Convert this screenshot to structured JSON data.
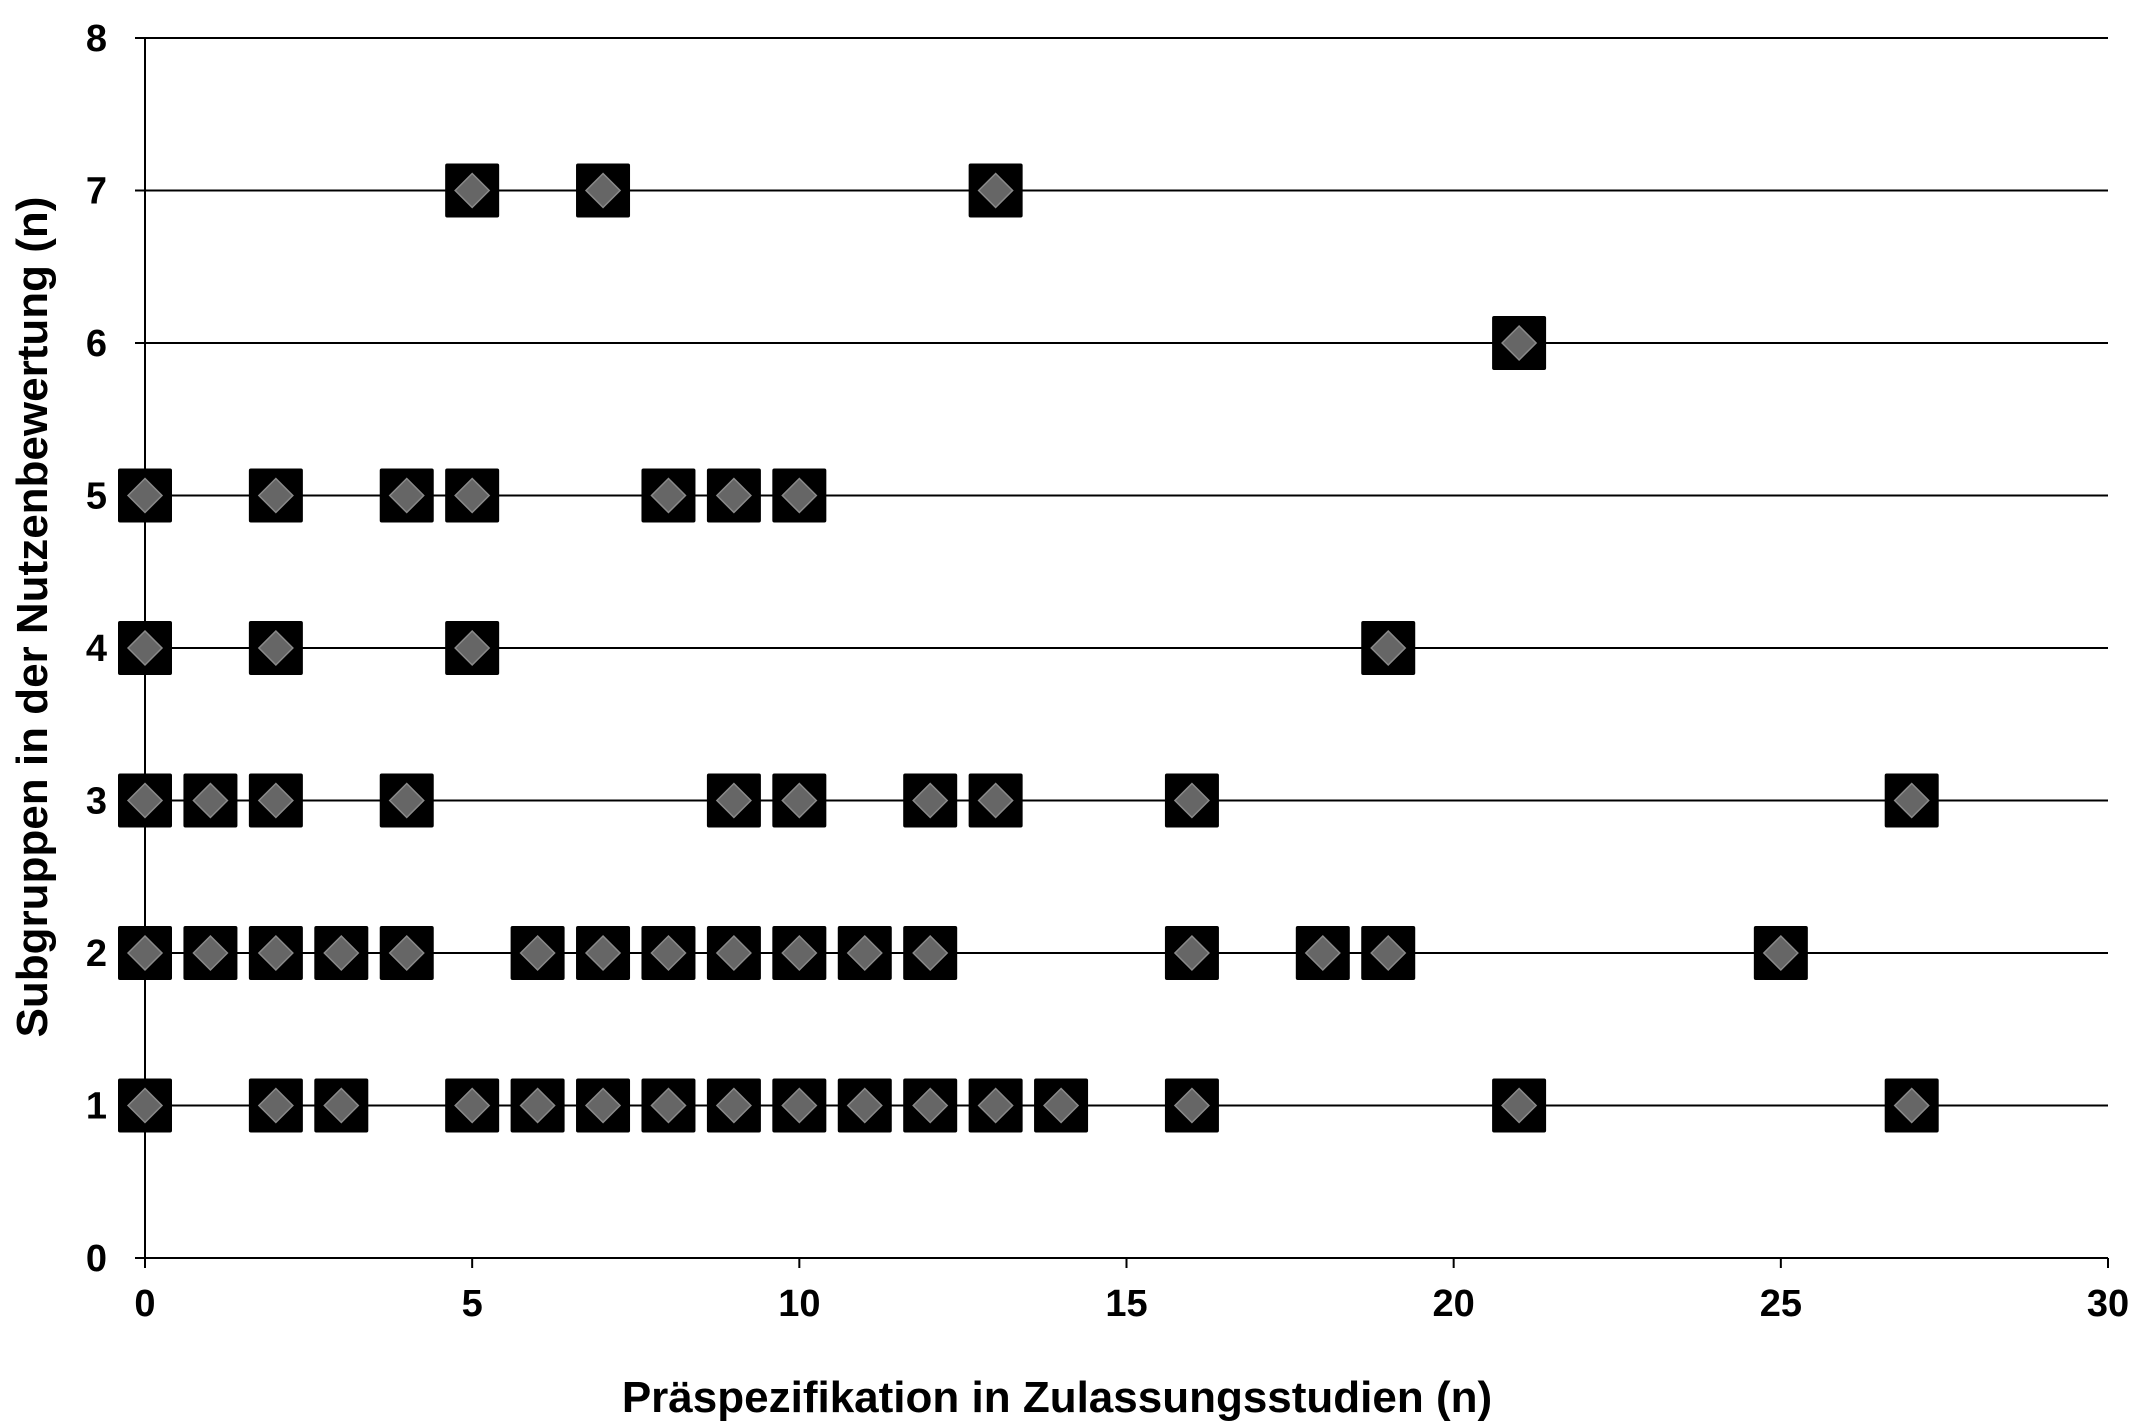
{
  "chart_data": {
    "type": "scatter",
    "title": "",
    "xlabel": "Präspezifikation in Zulassungsstudien (n)",
    "ylabel": "Subgruppen in der Nutzenbewertung (n)",
    "xlim": [
      0,
      30
    ],
    "ylim": [
      0,
      8
    ],
    "xticks": [
      "0",
      "5",
      "10",
      "15",
      "20",
      "25",
      "30"
    ],
    "yticks": [
      "0",
      "1",
      "2",
      "3",
      "4",
      "5",
      "6",
      "7",
      "8"
    ],
    "grid": "horizontal",
    "legend": "none",
    "marker": "square-with-diamond",
    "marker_color": "#000000",
    "marker_inner_color": "#666666",
    "points": [
      {
        "x": 5,
        "y": 7
      },
      {
        "x": 7,
        "y": 7
      },
      {
        "x": 13,
        "y": 7
      },
      {
        "x": 21,
        "y": 6
      },
      {
        "x": 0,
        "y": 5
      },
      {
        "x": 2,
        "y": 5
      },
      {
        "x": 4,
        "y": 5
      },
      {
        "x": 5,
        "y": 5
      },
      {
        "x": 8,
        "y": 5
      },
      {
        "x": 9,
        "y": 5
      },
      {
        "x": 10,
        "y": 5
      },
      {
        "x": 0,
        "y": 4
      },
      {
        "x": 2,
        "y": 4
      },
      {
        "x": 5,
        "y": 4
      },
      {
        "x": 19,
        "y": 4
      },
      {
        "x": 0,
        "y": 3
      },
      {
        "x": 1,
        "y": 3
      },
      {
        "x": 2,
        "y": 3
      },
      {
        "x": 4,
        "y": 3
      },
      {
        "x": 9,
        "y": 3
      },
      {
        "x": 10,
        "y": 3
      },
      {
        "x": 12,
        "y": 3
      },
      {
        "x": 13,
        "y": 3
      },
      {
        "x": 16,
        "y": 3
      },
      {
        "x": 27,
        "y": 3
      },
      {
        "x": 0,
        "y": 2
      },
      {
        "x": 1,
        "y": 2
      },
      {
        "x": 2,
        "y": 2
      },
      {
        "x": 3,
        "y": 2
      },
      {
        "x": 4,
        "y": 2
      },
      {
        "x": 6,
        "y": 2
      },
      {
        "x": 7,
        "y": 2
      },
      {
        "x": 8,
        "y": 2
      },
      {
        "x": 9,
        "y": 2
      },
      {
        "x": 10,
        "y": 2
      },
      {
        "x": 11,
        "y": 2
      },
      {
        "x": 12,
        "y": 2
      },
      {
        "x": 16,
        "y": 2
      },
      {
        "x": 18,
        "y": 2
      },
      {
        "x": 19,
        "y": 2
      },
      {
        "x": 25,
        "y": 2
      },
      {
        "x": 0,
        "y": 1
      },
      {
        "x": 2,
        "y": 1
      },
      {
        "x": 3,
        "y": 1
      },
      {
        "x": 5,
        "y": 1
      },
      {
        "x": 6,
        "y": 1
      },
      {
        "x": 7,
        "y": 1
      },
      {
        "x": 8,
        "y": 1
      },
      {
        "x": 9,
        "y": 1
      },
      {
        "x": 10,
        "y": 1
      },
      {
        "x": 11,
        "y": 1
      },
      {
        "x": 12,
        "y": 1
      },
      {
        "x": 13,
        "y": 1
      },
      {
        "x": 14,
        "y": 1
      },
      {
        "x": 16,
        "y": 1
      },
      {
        "x": 21,
        "y": 1
      },
      {
        "x": 27,
        "y": 1
      }
    ]
  }
}
